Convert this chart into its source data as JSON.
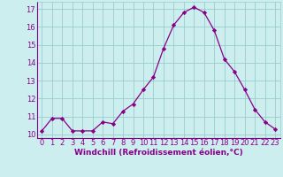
{
  "x": [
    0,
    1,
    2,
    3,
    4,
    5,
    6,
    7,
    8,
    9,
    10,
    11,
    12,
    13,
    14,
    15,
    16,
    17,
    18,
    19,
    20,
    21,
    22,
    23
  ],
  "y": [
    10.2,
    10.9,
    10.9,
    10.2,
    10.2,
    10.2,
    10.7,
    10.6,
    11.3,
    11.7,
    12.5,
    13.2,
    14.8,
    16.1,
    16.8,
    17.1,
    16.8,
    15.8,
    14.2,
    13.5,
    12.5,
    11.4,
    10.7,
    10.3
  ],
  "line_color": "#880088",
  "marker": "D",
  "marker_size": 2.2,
  "bg_color": "#cceeee",
  "grid_color": "#99cccc",
  "xlabel": "Windchill (Refroidissement éolien,°C)",
  "xlabel_color": "#880088",
  "xlabel_fontsize": 6.5,
  "tick_color": "#880088",
  "tick_fontsize": 6.0,
  "ylim": [
    9.8,
    17.4
  ],
  "yticks": [
    10,
    11,
    12,
    13,
    14,
    15,
    16,
    17
  ],
  "xlim": [
    -0.5,
    23.5
  ],
  "xticks": [
    0,
    1,
    2,
    3,
    4,
    5,
    6,
    7,
    8,
    9,
    10,
    11,
    12,
    13,
    14,
    15,
    16,
    17,
    18,
    19,
    20,
    21,
    22,
    23
  ]
}
